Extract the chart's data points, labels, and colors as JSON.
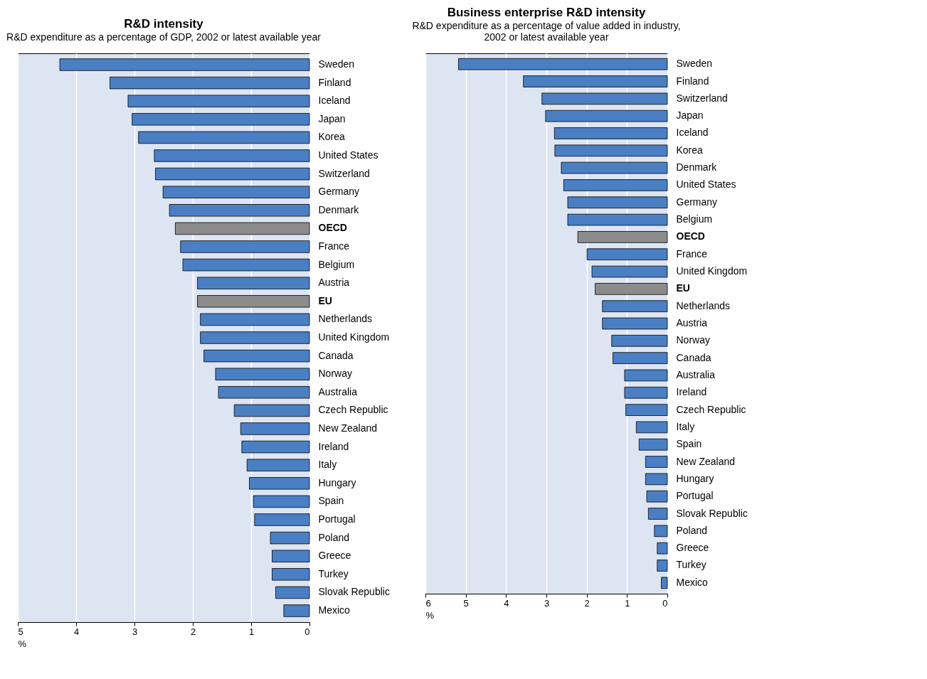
{
  "chart_data": [
    {
      "type": "bar",
      "orientation": "horizontal",
      "title": "R&D intensity",
      "subtitle": "R&D expenditure as a percentage of GDP, 2002 or latest available year",
      "xlabel": "%",
      "categories": [
        "Sweden",
        "Finland",
        "Iceland",
        "Japan",
        "Korea",
        "United States",
        "Switzerland",
        "Germany",
        "Denmark",
        "OECD",
        "France",
        "Belgium",
        "Austria",
        "EU",
        "Netherlands",
        "United Kingdom",
        "Canada",
        "Norway",
        "Australia",
        "Czech Republic",
        "New Zealand",
        "Ireland",
        "Italy",
        "Hungary",
        "Spain",
        "Portugal",
        "Poland",
        "Greece",
        "Turkey",
        "Slovak Republic",
        "Mexico"
      ],
      "values": [
        4.28,
        3.42,
        3.11,
        3.04,
        2.93,
        2.66,
        2.64,
        2.51,
        2.4,
        2.3,
        2.21,
        2.17,
        1.92,
        1.92,
        1.87,
        1.87,
        1.81,
        1.61,
        1.56,
        1.29,
        1.18,
        1.16,
        1.07,
        1.03,
        0.96,
        0.94,
        0.67,
        0.64,
        0.64,
        0.58,
        0.44
      ],
      "colors": [
        "#4a7fc4",
        "#4a7fc4",
        "#4a7fc4",
        "#4a7fc4",
        "#4a7fc4",
        "#4a7fc4",
        "#4a7fc4",
        "#4a7fc4",
        "#4a7fc4",
        "#8c8c8c",
        "#4a7fc4",
        "#4a7fc4",
        "#4a7fc4",
        "#8c8c8c",
        "#4a7fc4",
        "#4a7fc4",
        "#4a7fc4",
        "#4a7fc4",
        "#4a7fc4",
        "#4a7fc4",
        "#4a7fc4",
        "#4a7fc4",
        "#4a7fc4",
        "#4a7fc4",
        "#4a7fc4",
        "#4a7fc4",
        "#4a7fc4",
        "#4a7fc4",
        "#4a7fc4",
        "#4a7fc4",
        "#4a7fc4"
      ],
      "xlim": [
        5,
        0
      ],
      "xticks": [
        5,
        4,
        3,
        2,
        1,
        0
      ],
      "grid": "x"
    },
    {
      "type": "bar",
      "orientation": "horizontal",
      "title": "Business enterprise R&D intensity",
      "subtitle": "R&D expenditure as a percentage of value added in industry, 2002 or latest available year",
      "xlabel": "%",
      "categories": [
        "Sweden",
        "Finland",
        "Switzerland",
        "Japan",
        "Iceland",
        "Korea",
        "Denmark",
        "United States",
        "Germany",
        "Belgium",
        "OECD",
        "France",
        "United Kingdom",
        "EU",
        "Netherlands",
        "Austria",
        "Norway",
        "Canada",
        "Australia",
        "Ireland",
        "Czech Republic",
        "Italy",
        "Spain",
        "New Zealand",
        "Hungary",
        "Portugal",
        "Slovak Republic",
        "Poland",
        "Greece",
        "Turkey",
        "Mexico"
      ],
      "values": [
        5.18,
        3.57,
        3.11,
        3.02,
        2.8,
        2.79,
        2.63,
        2.57,
        2.47,
        2.47,
        2.22,
        1.99,
        1.87,
        1.79,
        1.61,
        1.61,
        1.38,
        1.35,
        1.06,
        1.06,
        1.03,
        0.77,
        0.7,
        0.54,
        0.54,
        0.51,
        0.47,
        0.32,
        0.25,
        0.25,
        0.15
      ],
      "colors": [
        "#4a7fc4",
        "#4a7fc4",
        "#4a7fc4",
        "#4a7fc4",
        "#4a7fc4",
        "#4a7fc4",
        "#4a7fc4",
        "#4a7fc4",
        "#4a7fc4",
        "#4a7fc4",
        "#8c8c8c",
        "#4a7fc4",
        "#4a7fc4",
        "#8c8c8c",
        "#4a7fc4",
        "#4a7fc4",
        "#4a7fc4",
        "#4a7fc4",
        "#4a7fc4",
        "#4a7fc4",
        "#4a7fc4",
        "#4a7fc4",
        "#4a7fc4",
        "#4a7fc4",
        "#4a7fc4",
        "#4a7fc4",
        "#4a7fc4",
        "#4a7fc4",
        "#4a7fc4",
        "#4a7fc4",
        "#4a7fc4"
      ],
      "xlim": [
        6,
        0
      ],
      "xticks": [
        6,
        5,
        4,
        3,
        2,
        1,
        0
      ],
      "grid": "x"
    }
  ]
}
